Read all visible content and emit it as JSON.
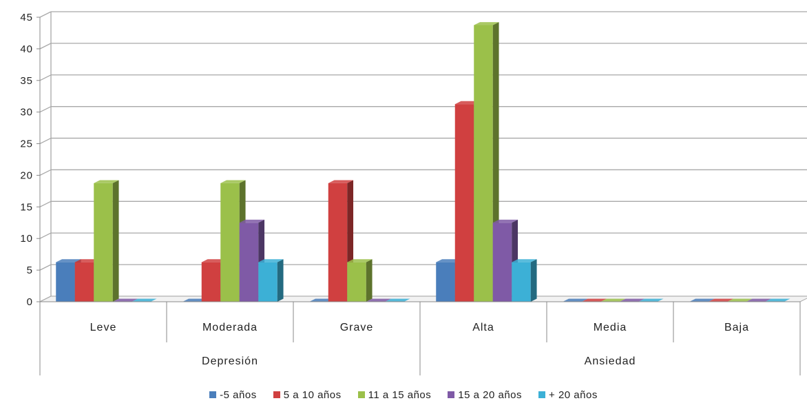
{
  "chart_data": {
    "type": "bar",
    "title": "",
    "xlabel": "",
    "ylabel": "",
    "ylim": [
      0,
      45
    ],
    "yticks": [
      0,
      5,
      10,
      15,
      20,
      25,
      30,
      35,
      40,
      45
    ],
    "grid": true,
    "legend_position": "bottom",
    "groups": [
      {
        "label": "Depresión",
        "categories": [
          "Leve",
          "Moderada",
          "Grave"
        ]
      },
      {
        "label": "Ansiedad",
        "categories": [
          "Alta",
          "Media",
          "Baja"
        ]
      }
    ],
    "categories": [
      "Leve",
      "Moderada",
      "Grave",
      "Alta",
      "Media",
      "Baja"
    ],
    "series": [
      {
        "name": "-5 años",
        "color": "#4a7ebb",
        "values": [
          6.25,
          0,
          0,
          6.25,
          0,
          0
        ]
      },
      {
        "name": "5 a 10 años",
        "color": "#d04040",
        "values": [
          6.25,
          6.25,
          18.75,
          31.25,
          0,
          0
        ]
      },
      {
        "name": "11 a 15 años",
        "color": "#9bc04a",
        "values": [
          18.75,
          18.75,
          6.25,
          43.75,
          0,
          0
        ]
      },
      {
        "name": "15 a 20 años",
        "color": "#7f5aa6",
        "values": [
          0,
          12.5,
          0,
          12.5,
          0,
          0
        ]
      },
      {
        "name": "+ 20 años",
        "color": "#3cb0d6",
        "values": [
          0,
          6.25,
          0,
          6.25,
          0,
          0
        ]
      }
    ]
  }
}
